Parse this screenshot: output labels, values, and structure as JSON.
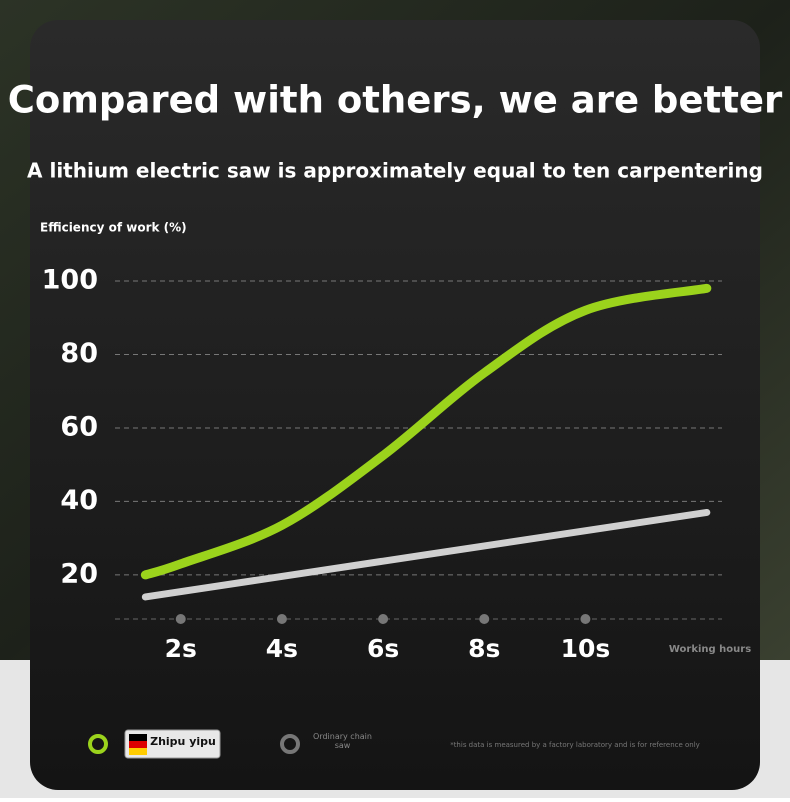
{
  "chart_data": {
    "type": "line",
    "title": "Compared with others, we are better",
    "subtitle": "A lithium electric saw is approximately equal to ten carpentering",
    "y_label": "Efficiency of work (%)",
    "x_label": "Working hours",
    "xlim": [
      0.7,
      12.7
    ],
    "xticks": [
      {
        "value": 2,
        "label": "2s"
      },
      {
        "value": 4,
        "label": "4s"
      },
      {
        "value": 6,
        "label": "6s"
      },
      {
        "value": 8,
        "label": "8s"
      },
      {
        "value": 10,
        "label": "10s"
      }
    ],
    "ylim": [
      8,
      100
    ],
    "yticks": [
      20,
      40,
      60,
      80,
      100
    ],
    "grid": true,
    "series": [
      {
        "name": "Zhipu yipu",
        "color": "#9bd31c",
        "x": [
          1.3,
          2,
          4,
          6,
          8,
          10,
          12.4
        ],
        "values": [
          20,
          23,
          33.5,
          52.5,
          75,
          92,
          98
        ]
      },
      {
        "name": "Ordinary chain saw",
        "color": "#d0d0d0",
        "x": [
          1.3,
          12.4
        ],
        "values": [
          14,
          37
        ]
      }
    ],
    "note": "*this data is measured by a factory laboratory and is for reference only"
  }
}
